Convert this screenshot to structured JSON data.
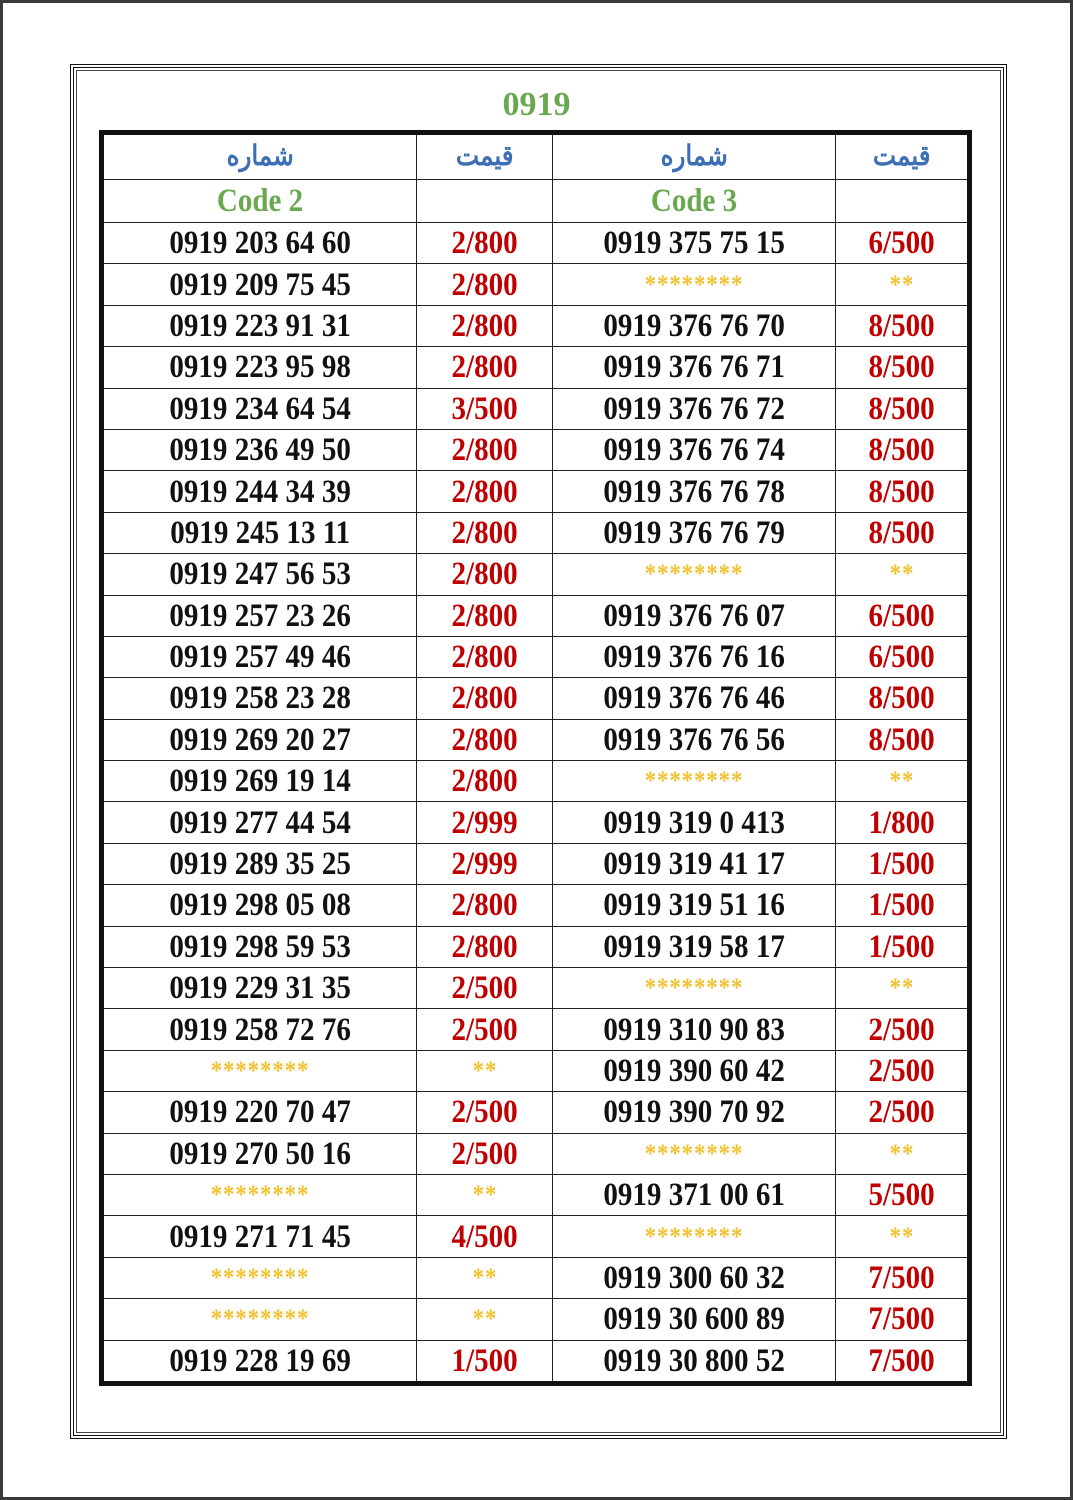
{
  "title": "0919",
  "headers": {
    "number": "شماره",
    "price": "قیمت"
  },
  "codes": {
    "left": "Code 2",
    "right": "Code 3"
  },
  "colors": {
    "title": "#6aa84f",
    "header": "#3d6fb6",
    "price": "#c00000",
    "stars": "#f1c232"
  },
  "rows": [
    [
      "0919 203 64 60",
      "2/800",
      "0919 375 75 15",
      "6/500"
    ],
    [
      "0919 209 75 45",
      "2/800",
      "********",
      "**"
    ],
    [
      "0919 223 91 31",
      "2/800",
      "0919 376 76 70",
      "8/500"
    ],
    [
      "0919 223 95 98",
      "2/800",
      "0919 376 76 71",
      "8/500"
    ],
    [
      "0919 234 64 54",
      "3/500",
      "0919 376 76 72",
      "8/500"
    ],
    [
      "0919 236 49 50",
      "2/800",
      "0919 376 76 74",
      "8/500"
    ],
    [
      "0919 244 34 39",
      "2/800",
      "0919 376 76 78",
      "8/500"
    ],
    [
      "0919 245 13 11",
      "2/800",
      "0919 376 76 79",
      "8/500"
    ],
    [
      "0919 247 56 53",
      "2/800",
      "********",
      "**"
    ],
    [
      "0919 257 23 26",
      "2/800",
      "0919 376 76 07",
      "6/500"
    ],
    [
      "0919 257 49 46",
      "2/800",
      "0919 376 76 16",
      "6/500"
    ],
    [
      "0919 258 23 28",
      "2/800",
      "0919 376 76 46",
      "8/500"
    ],
    [
      "0919 269 20 27",
      "2/800",
      "0919 376 76 56",
      "8/500"
    ],
    [
      "0919 269 19 14",
      "2/800",
      "********",
      "**"
    ],
    [
      "0919 277 44 54",
      "2/999",
      "0919 319 0 413",
      "1/800"
    ],
    [
      "0919 289 35 25",
      "2/999",
      "0919 319 41 17",
      "1/500"
    ],
    [
      "0919 298 05 08",
      "2/800",
      "0919 319 51 16",
      "1/500"
    ],
    [
      "0919 298 59 53",
      "2/800",
      "0919 319 58 17",
      "1/500"
    ],
    [
      "0919 229 31 35",
      "2/500",
      "********",
      "**"
    ],
    [
      "0919 258 72 76",
      "2/500",
      "0919 310 90 83",
      "2/500"
    ],
    [
      "********",
      "**",
      "0919 390 60 42",
      "2/500"
    ],
    [
      "0919 220 70 47",
      "2/500",
      "0919 390 70 92",
      "2/500"
    ],
    [
      "0919 270 50 16",
      "2/500",
      "********",
      "**"
    ],
    [
      "********",
      "**",
      "0919 371 00 61",
      "5/500"
    ],
    [
      "0919 271 71 45",
      "4/500",
      "********",
      "**"
    ],
    [
      "********",
      "**",
      "0919 300 60 32",
      "7/500"
    ],
    [
      "********",
      "**",
      "0919 30 600 89",
      "7/500"
    ],
    [
      "0919 228 19 69",
      "1/500",
      "0919 30 800 52",
      "7/500"
    ]
  ]
}
